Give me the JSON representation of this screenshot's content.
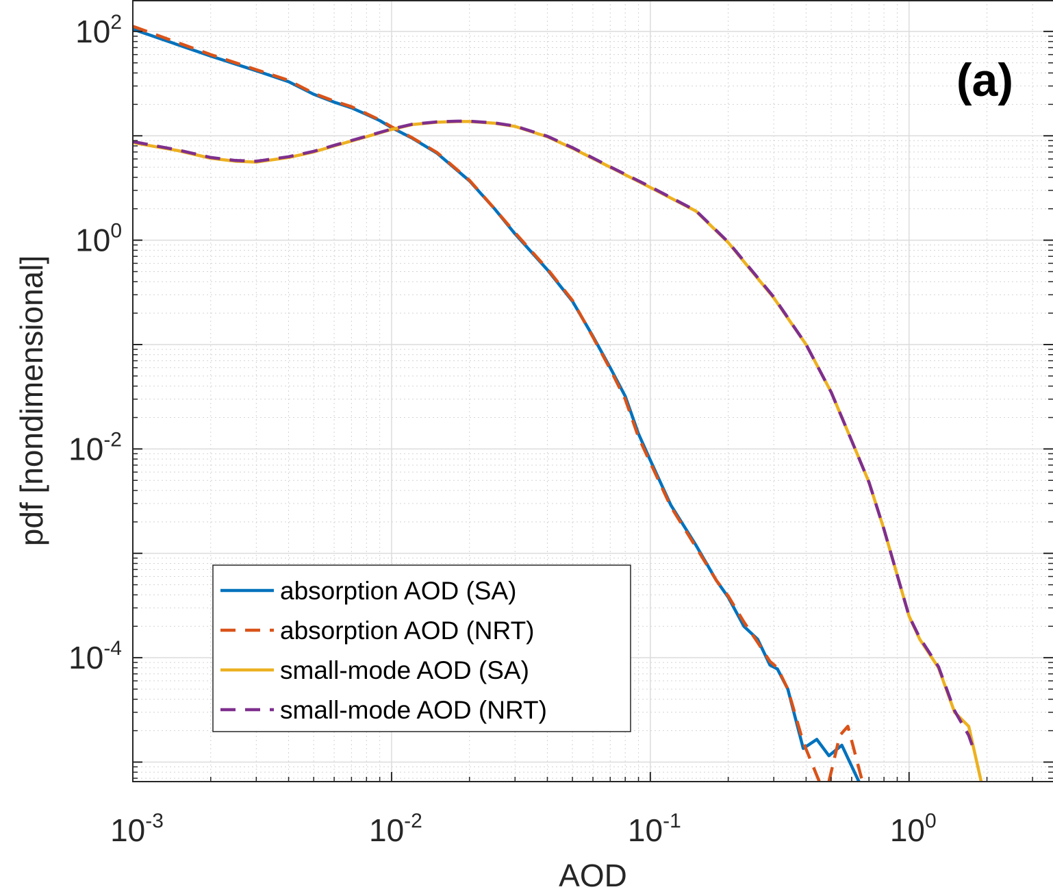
{
  "panel_label": "(a)",
  "chart_data": {
    "type": "line",
    "xlabel": "AOD",
    "ylabel": "pdf [nondimensional]",
    "xscale": "log",
    "yscale": "log",
    "xlim": [
      0.001,
      3.6
    ],
    "ylim": [
      6.5e-06,
      200
    ],
    "xticks": [
      0.001,
      0.01,
      0.1,
      1
    ],
    "xtick_labels": [
      {
        "base": "10",
        "exp": "-3"
      },
      {
        "base": "10",
        "exp": "-2"
      },
      {
        "base": "10",
        "exp": "-1"
      },
      {
        "base": "10",
        "exp": "0"
      }
    ],
    "yticks": [
      0.0001,
      0.01,
      1,
      100
    ],
    "ytick_labels": [
      {
        "base": "10",
        "exp": "-4"
      },
      {
        "base": "10",
        "exp": "-2"
      },
      {
        "base": "10",
        "exp": "0"
      },
      {
        "base": "10",
        "exp": "2"
      }
    ],
    "grid": true,
    "legend_position": "bottom-left",
    "series": [
      {
        "name": "absorption AOD (SA)",
        "color": "#0072BD",
        "dash": "solid",
        "x": [
          0.001,
          0.002,
          0.003,
          0.004,
          0.005,
          0.006,
          0.007,
          0.008,
          0.009,
          0.01,
          0.012,
          0.015,
          0.02,
          0.025,
          0.03,
          0.04,
          0.05,
          0.06,
          0.07,
          0.08,
          0.09,
          0.1,
          0.12,
          0.15,
          0.18,
          0.2,
          0.23,
          0.26,
          0.29,
          0.31,
          0.34,
          0.39,
          0.44,
          0.49,
          0.55,
          0.64
        ],
        "y": [
          105,
          58,
          42,
          33,
          25,
          21,
          18.5,
          16,
          14,
          12,
          9.5,
          6.8,
          3.7,
          2.0,
          1.15,
          0.52,
          0.26,
          0.12,
          0.06,
          0.032,
          0.014,
          0.0078,
          0.0029,
          0.0012,
          0.00055,
          0.00038,
          0.0002,
          0.00015,
          8.5e-05,
          7.8e-05,
          5e-05,
          1.35e-05,
          1.65e-05,
          1.15e-05,
          1.45e-05,
          6.5e-06
        ]
      },
      {
        "name": "absorption AOD (NRT)",
        "color": "#D95319",
        "dash": "dashed",
        "x": [
          0.001,
          0.002,
          0.003,
          0.004,
          0.005,
          0.006,
          0.007,
          0.008,
          0.009,
          0.01,
          0.012,
          0.015,
          0.02,
          0.025,
          0.03,
          0.04,
          0.05,
          0.06,
          0.07,
          0.08,
          0.09,
          0.1,
          0.12,
          0.15,
          0.18,
          0.2,
          0.23,
          0.26,
          0.29,
          0.31,
          0.34,
          0.39,
          0.45,
          0.49,
          0.54,
          0.58,
          0.66
        ],
        "y": [
          112,
          60,
          43,
          34,
          25.5,
          21.5,
          19,
          16.3,
          14.2,
          12.2,
          9.6,
          6.9,
          3.75,
          2.0,
          1.18,
          0.53,
          0.265,
          0.118,
          0.058,
          0.03,
          0.013,
          0.0074,
          0.0028,
          0.00115,
          0.00055,
          0.00039,
          0.00022,
          0.00014,
          9.2e-05,
          8e-05,
          5e-05,
          1.55e-05,
          6.5e-06,
          6.5e-06,
          1.8e-05,
          2.2e-05,
          6.5e-06
        ]
      },
      {
        "name": "small-mode AOD (SA)",
        "color": "#EDB120",
        "dash": "solid",
        "x": [
          0.001,
          0.0015,
          0.002,
          0.0025,
          0.003,
          0.004,
          0.005,
          0.006,
          0.008,
          0.01,
          0.012,
          0.015,
          0.018,
          0.02,
          0.025,
          0.03,
          0.04,
          0.05,
          0.07,
          0.1,
          0.15,
          0.2,
          0.3,
          0.4,
          0.5,
          0.6,
          0.7,
          0.8,
          1.0,
          1.1,
          1.3,
          1.5,
          1.7,
          1.9
        ],
        "y": [
          8.6,
          7.2,
          6.1,
          5.7,
          5.6,
          6.2,
          7.0,
          8.0,
          9.8,
          11.5,
          12.8,
          13.5,
          13.7,
          13.7,
          13.2,
          12.3,
          9.8,
          7.6,
          5.0,
          3.2,
          1.9,
          0.95,
          0.28,
          0.1,
          0.035,
          0.012,
          0.0048,
          0.0017,
          0.00025,
          0.00015,
          8e-05,
          3e-05,
          2.2e-05,
          6.5e-06
        ]
      },
      {
        "name": "small-mode AOD (NRT)",
        "color": "#7E2F8E",
        "dash": "dashed",
        "x": [
          0.001,
          0.0015,
          0.002,
          0.0025,
          0.003,
          0.004,
          0.005,
          0.006,
          0.008,
          0.01,
          0.012,
          0.015,
          0.018,
          0.02,
          0.025,
          0.03,
          0.04,
          0.05,
          0.07,
          0.1,
          0.15,
          0.2,
          0.3,
          0.4,
          0.5,
          0.6,
          0.7,
          0.8,
          1.0,
          1.1,
          1.3,
          1.5,
          1.7,
          1.8
        ],
        "y": [
          8.8,
          7.3,
          6.2,
          5.8,
          5.7,
          6.3,
          7.1,
          8.1,
          9.9,
          11.6,
          12.9,
          13.6,
          13.8,
          13.8,
          13.3,
          12.4,
          9.9,
          7.7,
          5.05,
          3.25,
          1.92,
          0.96,
          0.285,
          0.1,
          0.035,
          0.012,
          0.0048,
          0.0017,
          0.00025,
          0.000155,
          8.2e-05,
          3.1e-05,
          1.8e-05,
          1.2e-05
        ]
      }
    ]
  }
}
